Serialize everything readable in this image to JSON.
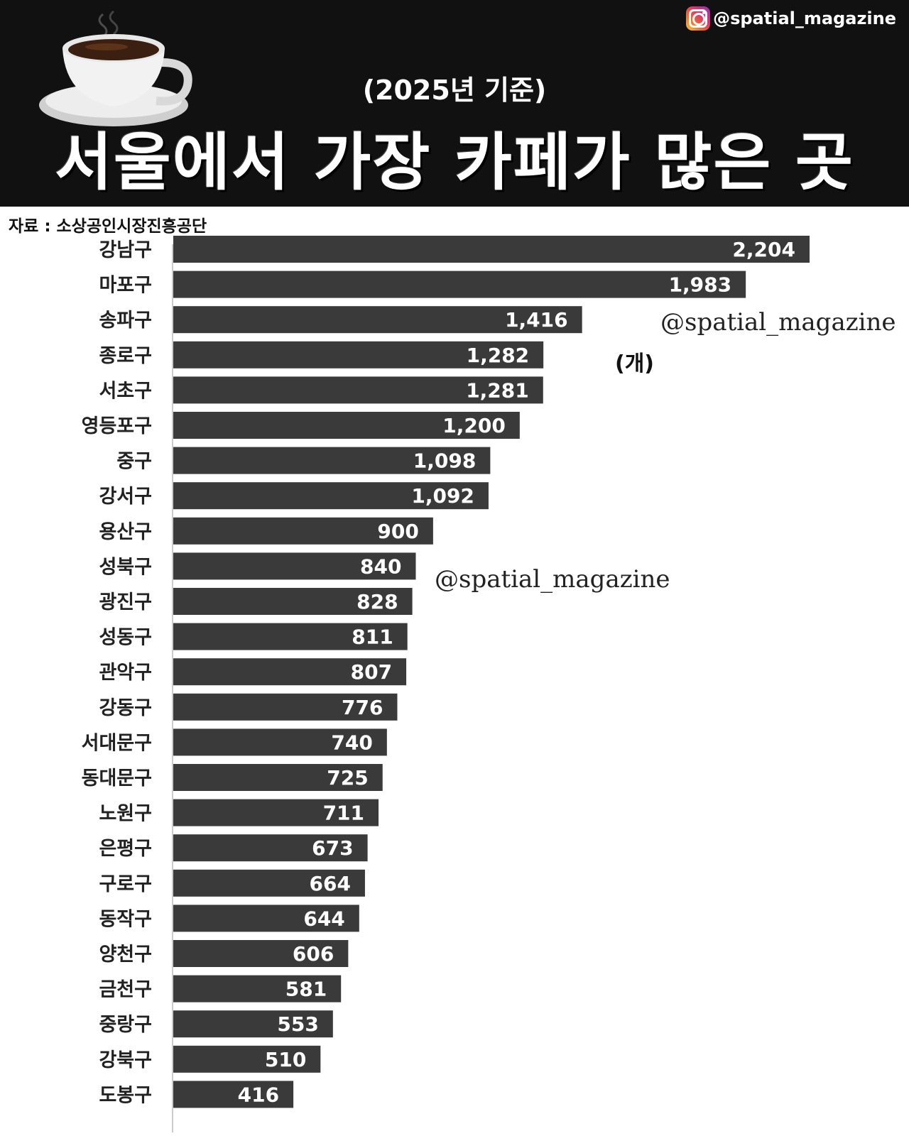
{
  "header": {
    "handle": "@spatial_magazine",
    "subtitle": "(2025년 기준)",
    "title": "서울에서 가장 카페가 많은 곳"
  },
  "source": "자료 : 소상공인시장진흥공단",
  "unit": "(개)",
  "watermarks": [
    "@spatial_magazine",
    "@spatial_magazine"
  ],
  "icons": [
    "instagram-icon",
    "coffee-cup-icon"
  ],
  "colors": {
    "bar": "#3a3a3a",
    "header_bg": "#111111"
  },
  "chart_data": {
    "type": "bar",
    "orientation": "horizontal",
    "categories": [
      "강남구",
      "마포구",
      "송파구",
      "종로구",
      "서초구",
      "영등포구",
      "중구",
      "강서구",
      "용산구",
      "성북구",
      "광진구",
      "성동구",
      "관악구",
      "강동구",
      "서대문구",
      "동대문구",
      "노원구",
      "은평구",
      "구로구",
      "동작구",
      "양천구",
      "금천구",
      "중랑구",
      "강북구",
      "도봉구"
    ],
    "values": [
      2204,
      1983,
      1416,
      1282,
      1281,
      1200,
      1098,
      1092,
      900,
      840,
      828,
      811,
      807,
      776,
      740,
      725,
      711,
      673,
      664,
      644,
      606,
      581,
      553,
      510,
      416
    ],
    "value_labels": [
      "2,204",
      "1,983",
      "1,416",
      "1,282",
      "1,281",
      "1,200",
      "1,098",
      "1,092",
      "900",
      "840",
      "828",
      "811",
      "807",
      "776",
      "740",
      "725",
      "711",
      "673",
      "664",
      "644",
      "606",
      "581",
      "553",
      "510",
      "416"
    ],
    "title": "서울에서 가장 카페가 많은 곳",
    "subtitle": "(2025년 기준)",
    "unit": "(개)",
    "xlim": [
      0,
      2204
    ],
    "grid": false,
    "legend": "none"
  }
}
